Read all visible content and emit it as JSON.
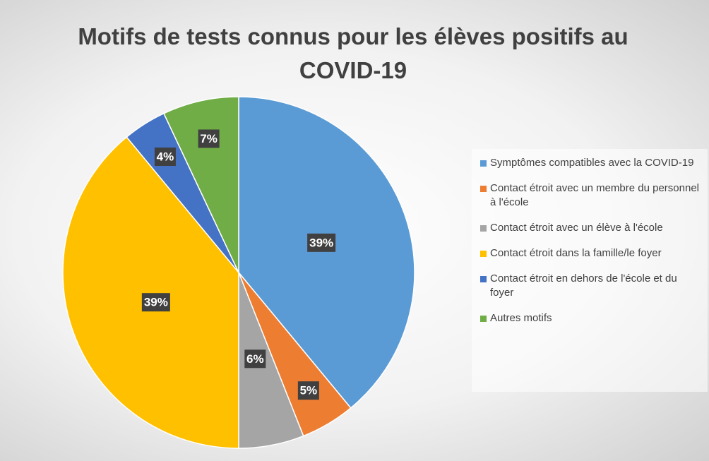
{
  "chart_data": {
    "type": "pie",
    "title": "Motifs de tests connus pour les élèves positifs au COVID-19",
    "categories": [
      "Symptômes compatibles avec la COVID-19",
      "Contact étroit avec un membre du personnel à l'école",
      "Contact étroit avec un élève à l'école",
      "Contact étroit dans la famille/le foyer",
      "Contact étroit en dehors de l'école et du foyer",
      "Autres motifs"
    ],
    "values": [
      39,
      5,
      6,
      39,
      4,
      7
    ],
    "value_labels": [
      "39%",
      "5%",
      "6%",
      "39%",
      "4%",
      "7%"
    ],
    "colors": [
      "#5b9bd5",
      "#ed7d31",
      "#a5a5a5",
      "#ffc000",
      "#4472c4",
      "#70ad47"
    ],
    "legend": "right"
  }
}
